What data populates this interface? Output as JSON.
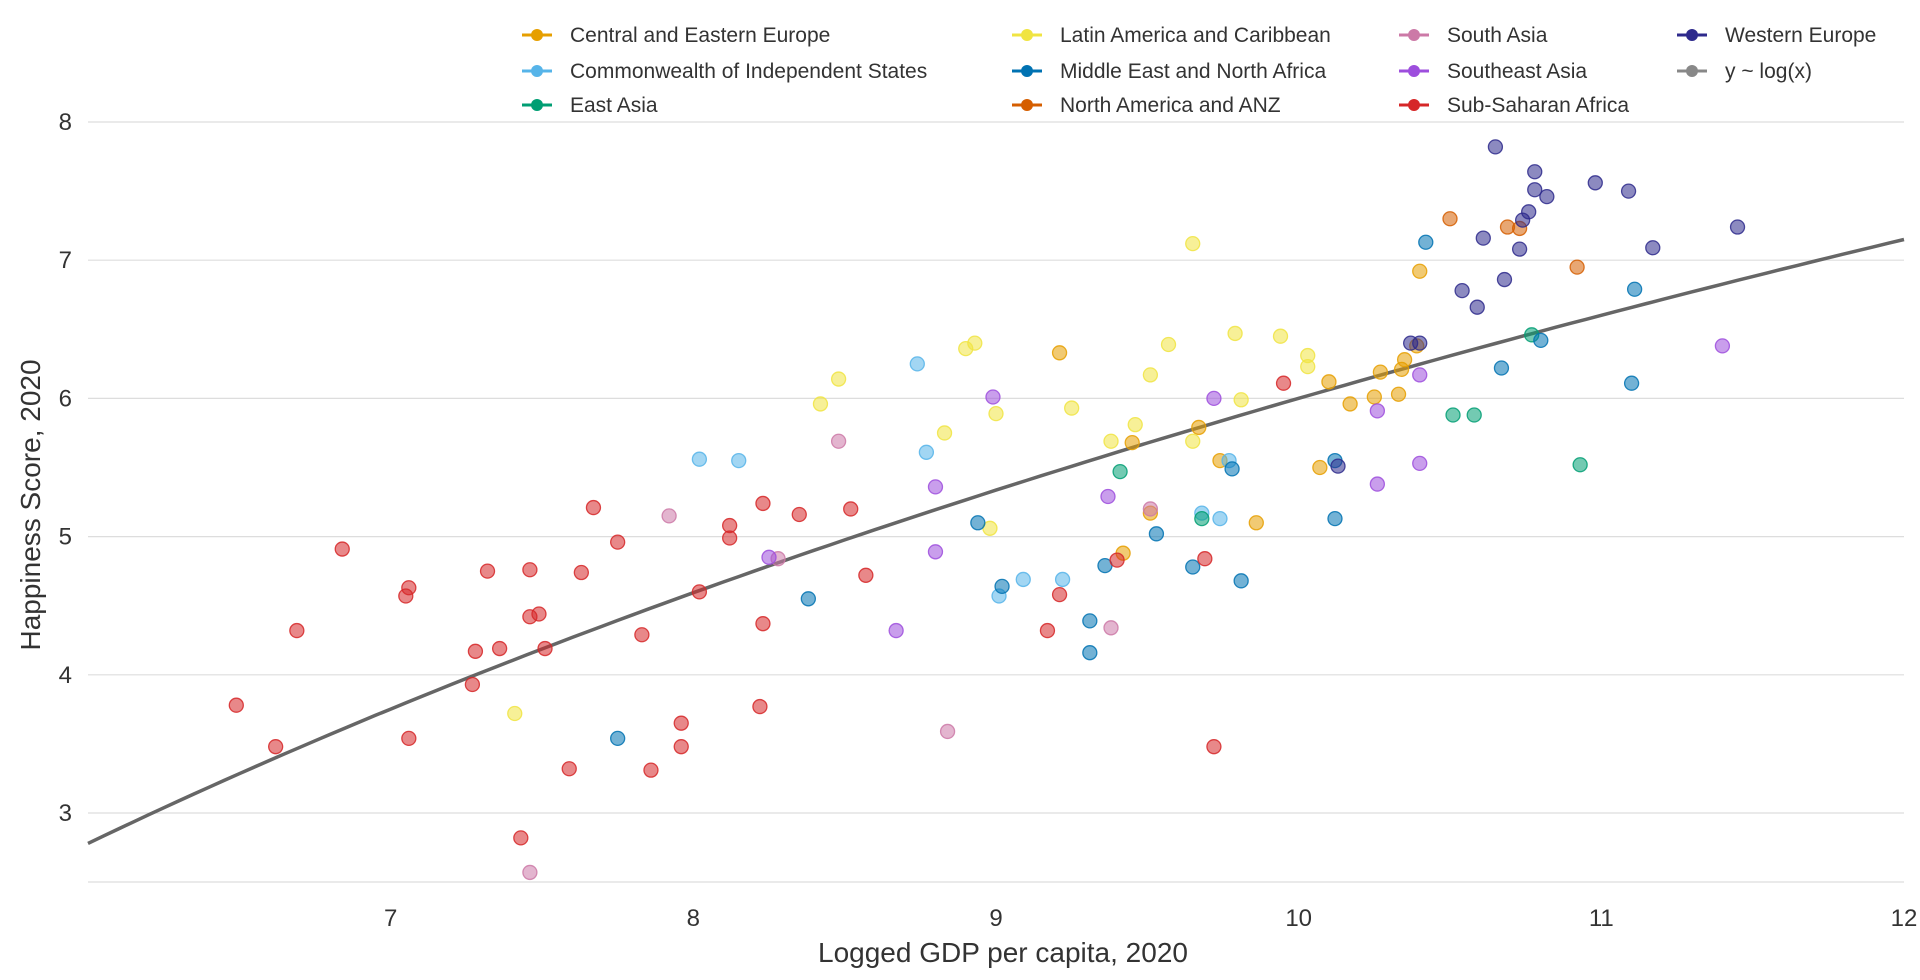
{
  "chart_data": {
    "type": "scatter",
    "xlabel": "Logged GDP per capita, 2020",
    "ylabel": "Happiness Score, 2020",
    "xlim": [
      6,
      12
    ],
    "ylim": [
      2.5,
      8.2
    ],
    "x_ticks": [
      7,
      8,
      9,
      10,
      11,
      12
    ],
    "y_ticks": [
      3,
      4,
      5,
      6,
      7,
      8
    ],
    "grid": "horizontal",
    "legend_position": "top",
    "trendline": {
      "label": "y ~ log(x)",
      "color": "#666666",
      "x": [
        6.0,
        12.0
      ],
      "y": [
        2.78,
        7.15
      ]
    },
    "series": [
      {
        "name": "Central and Eastern Europe",
        "color": "#E69F00",
        "points": [
          [
            9.21,
            6.33
          ],
          [
            9.45,
            5.68
          ],
          [
            9.51,
            5.17
          ],
          [
            9.67,
            5.79
          ],
          [
            9.74,
            5.55
          ],
          [
            9.86,
            5.1
          ],
          [
            9.42,
            4.88
          ],
          [
            10.07,
            5.5
          ],
          [
            10.1,
            6.12
          ],
          [
            10.17,
            5.96
          ],
          [
            10.25,
            6.01
          ],
          [
            10.27,
            6.19
          ],
          [
            10.33,
            6.03
          ],
          [
            10.34,
            6.21
          ],
          [
            10.35,
            6.28
          ],
          [
            10.39,
            6.38
          ],
          [
            10.4,
            6.92
          ]
        ]
      },
      {
        "name": "Commonwealth of Independent States",
        "color": "#56B4E9",
        "points": [
          [
            8.02,
            5.56
          ],
          [
            8.15,
            5.55
          ],
          [
            8.74,
            6.25
          ],
          [
            8.77,
            5.61
          ],
          [
            9.01,
            4.57
          ],
          [
            9.09,
            4.69
          ],
          [
            9.22,
            4.69
          ],
          [
            9.68,
            5.17
          ],
          [
            9.74,
            5.13
          ],
          [
            9.77,
            5.55
          ]
        ]
      },
      {
        "name": "East Asia",
        "color": "#009E73",
        "points": [
          [
            9.41,
            5.47
          ],
          [
            9.68,
            5.13
          ],
          [
            10.51,
            5.88
          ],
          [
            10.58,
            5.88
          ],
          [
            10.77,
            6.46
          ],
          [
            10.93,
            5.52
          ]
        ]
      },
      {
        "name": "Latin America and Caribbean",
        "color": "#F0E442",
        "points": [
          [
            7.41,
            3.72
          ],
          [
            8.42,
            5.96
          ],
          [
            8.48,
            6.14
          ],
          [
            8.83,
            5.75
          ],
          [
            8.9,
            6.36
          ],
          [
            8.93,
            6.4
          ],
          [
            8.98,
            5.06
          ],
          [
            9.0,
            5.89
          ],
          [
            9.25,
            5.93
          ],
          [
            9.38,
            5.69
          ],
          [
            9.46,
            5.81
          ],
          [
            9.51,
            6.17
          ],
          [
            9.57,
            6.39
          ],
          [
            9.65,
            7.12
          ],
          [
            9.65,
            5.69
          ],
          [
            9.79,
            6.47
          ],
          [
            9.81,
            5.99
          ],
          [
            9.94,
            6.45
          ],
          [
            10.03,
            6.31
          ],
          [
            10.03,
            6.23
          ]
        ]
      },
      {
        "name": "Middle East and North Africa",
        "color": "#0072B2",
        "points": [
          [
            7.75,
            3.54
          ],
          [
            8.38,
            4.55
          ],
          [
            8.94,
            5.1
          ],
          [
            9.02,
            4.64
          ],
          [
            9.31,
            4.39
          ],
          [
            9.31,
            4.16
          ],
          [
            9.36,
            4.79
          ],
          [
            9.53,
            5.02
          ],
          [
            9.65,
            4.78
          ],
          [
            9.78,
            5.49
          ],
          [
            9.81,
            4.68
          ],
          [
            10.12,
            5.55
          ],
          [
            10.12,
            5.13
          ],
          [
            10.42,
            7.13
          ],
          [
            10.67,
            6.22
          ],
          [
            10.8,
            6.42
          ],
          [
            11.1,
            6.11
          ],
          [
            11.11,
            6.79
          ]
        ]
      },
      {
        "name": "North America and ANZ",
        "color": "#D55E00",
        "points": [
          [
            10.5,
            7.3
          ],
          [
            10.69,
            7.24
          ],
          [
            10.73,
            7.23
          ],
          [
            10.92,
            6.95
          ]
        ]
      },
      {
        "name": "South Asia",
        "color": "#CC79A7",
        "points": [
          [
            7.46,
            2.57
          ],
          [
            7.92,
            5.15
          ],
          [
            8.28,
            4.84
          ],
          [
            8.48,
            5.69
          ],
          [
            8.84,
            3.59
          ],
          [
            9.38,
            4.34
          ],
          [
            9.51,
            5.2
          ]
        ]
      },
      {
        "name": "Southeast Asia",
        "color": "#9D4EDD",
        "points": [
          [
            8.25,
            4.85
          ],
          [
            8.67,
            4.32
          ],
          [
            8.8,
            5.36
          ],
          [
            8.8,
            4.89
          ],
          [
            8.99,
            6.01
          ],
          [
            9.37,
            5.29
          ],
          [
            9.72,
            6.0
          ],
          [
            10.26,
            5.91
          ],
          [
            10.26,
            5.38
          ],
          [
            10.4,
            5.53
          ],
          [
            10.4,
            6.17
          ],
          [
            11.4,
            6.38
          ]
        ]
      },
      {
        "name": "Sub-Saharan Africa",
        "color": "#D62728",
        "points": [
          [
            6.49,
            3.78
          ],
          [
            6.62,
            3.48
          ],
          [
            6.69,
            4.32
          ],
          [
            6.84,
            4.91
          ],
          [
            7.05,
            4.57
          ],
          [
            7.06,
            4.63
          ],
          [
            7.06,
            3.54
          ],
          [
            7.27,
            3.93
          ],
          [
            7.28,
            4.17
          ],
          [
            7.32,
            4.75
          ],
          [
            7.36,
            4.19
          ],
          [
            7.43,
            2.82
          ],
          [
            7.46,
            4.76
          ],
          [
            7.46,
            4.42
          ],
          [
            7.49,
            4.44
          ],
          [
            7.51,
            4.19
          ],
          [
            7.63,
            4.74
          ],
          [
            7.67,
            5.21
          ],
          [
            7.59,
            3.32
          ],
          [
            7.75,
            4.96
          ],
          [
            7.83,
            4.29
          ],
          [
            7.86,
            3.31
          ],
          [
            7.96,
            3.65
          ],
          [
            7.96,
            3.48
          ],
          [
            8.02,
            4.6
          ],
          [
            8.12,
            5.08
          ],
          [
            8.12,
            4.99
          ],
          [
            8.23,
            5.24
          ],
          [
            8.23,
            4.37
          ],
          [
            8.22,
            3.77
          ],
          [
            8.35,
            5.16
          ],
          [
            8.52,
            5.2
          ],
          [
            8.57,
            4.72
          ],
          [
            9.17,
            4.32
          ],
          [
            9.21,
            4.58
          ],
          [
            9.4,
            4.83
          ],
          [
            9.69,
            4.84
          ],
          [
            9.72,
            3.48
          ],
          [
            9.95,
            6.11
          ]
        ]
      },
      {
        "name": "Western Europe",
        "color": "#2E2A8C",
        "points": [
          [
            10.13,
            5.51
          ],
          [
            10.37,
            6.4
          ],
          [
            10.4,
            6.4
          ],
          [
            10.54,
            6.78
          ],
          [
            10.59,
            6.66
          ],
          [
            10.61,
            7.16
          ],
          [
            10.65,
            7.82
          ],
          [
            10.68,
            6.86
          ],
          [
            10.73,
            7.08
          ],
          [
            10.74,
            7.29
          ],
          [
            10.76,
            7.35
          ],
          [
            10.78,
            7.64
          ],
          [
            10.78,
            7.51
          ],
          [
            10.82,
            7.46
          ],
          [
            10.98,
            7.56
          ],
          [
            11.09,
            7.5
          ],
          [
            11.17,
            7.09
          ],
          [
            11.45,
            7.24
          ]
        ]
      }
    ]
  }
}
